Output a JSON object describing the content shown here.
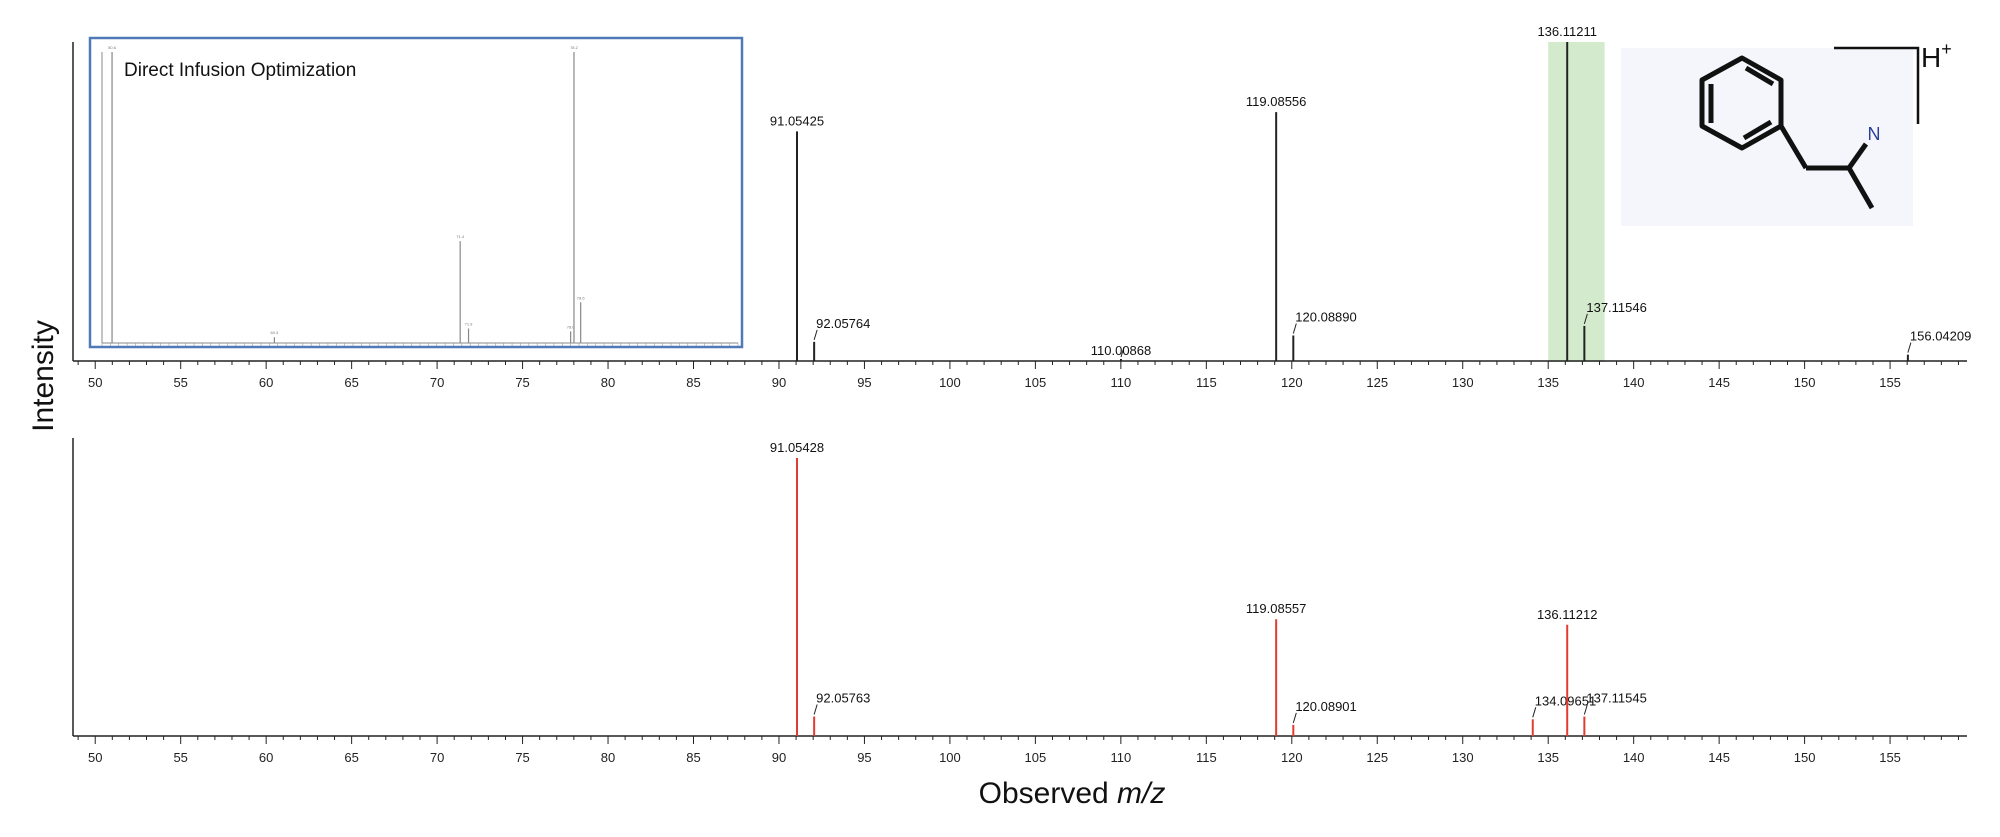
{
  "figure": {
    "ylabel": "Intensity",
    "xlabel_prefix": "Observed ",
    "xlabel_italic": "m/z"
  },
  "inset": {
    "title": "Direct Infusion Optimization",
    "xlim": [
      50,
      88
    ],
    "peaks": [
      {
        "x": 50.6,
        "y": 100,
        "label": "50.6"
      },
      {
        "x": 60.3,
        "y": 2,
        "label": "60.3"
      },
      {
        "x": 71.4,
        "y": 35,
        "label": "71.4"
      },
      {
        "x": 71.9,
        "y": 5,
        "label": "71.9"
      },
      {
        "x": 78.0,
        "y": 4,
        "label": "78.0"
      },
      {
        "x": 78.2,
        "y": 100,
        "label": "78.2"
      },
      {
        "x": 78.6,
        "y": 14,
        "label": "78.6"
      }
    ]
  },
  "structure": {
    "atom_label": "N",
    "charge_label": "H",
    "charge_sup": "+"
  },
  "highlight": {
    "x_range": [
      135,
      138.3
    ],
    "color": "#d3ebcc"
  },
  "chart_data": [
    {
      "type": "bar",
      "panel": "top",
      "xlim": [
        48.7,
        159.5
      ],
      "xticks": [
        50,
        55,
        60,
        65,
        70,
        75,
        80,
        85,
        90,
        95,
        100,
        105,
        110,
        115,
        120,
        125,
        130,
        135,
        140,
        145,
        150,
        155
      ],
      "color": "#222222",
      "peaks": [
        {
          "x": 91.05425,
          "y": 72,
          "label": "91.05425"
        },
        {
          "x": 92.05764,
          "y": 6,
          "label": "92.05764"
        },
        {
          "x": 110.00868,
          "y": 0.3,
          "label": "110.00868"
        },
        {
          "x": 119.08556,
          "y": 78,
          "label": "119.08556"
        },
        {
          "x": 120.0889,
          "y": 8,
          "label": "120.08890"
        },
        {
          "x": 136.11211,
          "y": 100,
          "label": "136.11211"
        },
        {
          "x": 137.11546,
          "y": 11,
          "label": "137.11546"
        },
        {
          "x": 156.04209,
          "y": 2,
          "label": "156.04209"
        }
      ]
    },
    {
      "type": "bar",
      "panel": "bottom",
      "xlim": [
        48.7,
        159.5
      ],
      "xticks": [
        50,
        55,
        60,
        65,
        70,
        75,
        80,
        85,
        90,
        95,
        100,
        105,
        110,
        115,
        120,
        125,
        130,
        135,
        140,
        145,
        150,
        155
      ],
      "color": "#e03c31",
      "peaks": [
        {
          "x": 91.05428,
          "y": 100,
          "label": "91.05428"
        },
        {
          "x": 92.05763,
          "y": 7,
          "label": "92.05763"
        },
        {
          "x": 119.08557,
          "y": 42,
          "label": "119.08557"
        },
        {
          "x": 120.08901,
          "y": 4,
          "label": "120.08901"
        },
        {
          "x": 134.09651,
          "y": 6,
          "label": "134.09651"
        },
        {
          "x": 136.11212,
          "y": 40,
          "label": "136.11212"
        },
        {
          "x": 137.11545,
          "y": 7,
          "label": "137.11545"
        }
      ]
    }
  ]
}
